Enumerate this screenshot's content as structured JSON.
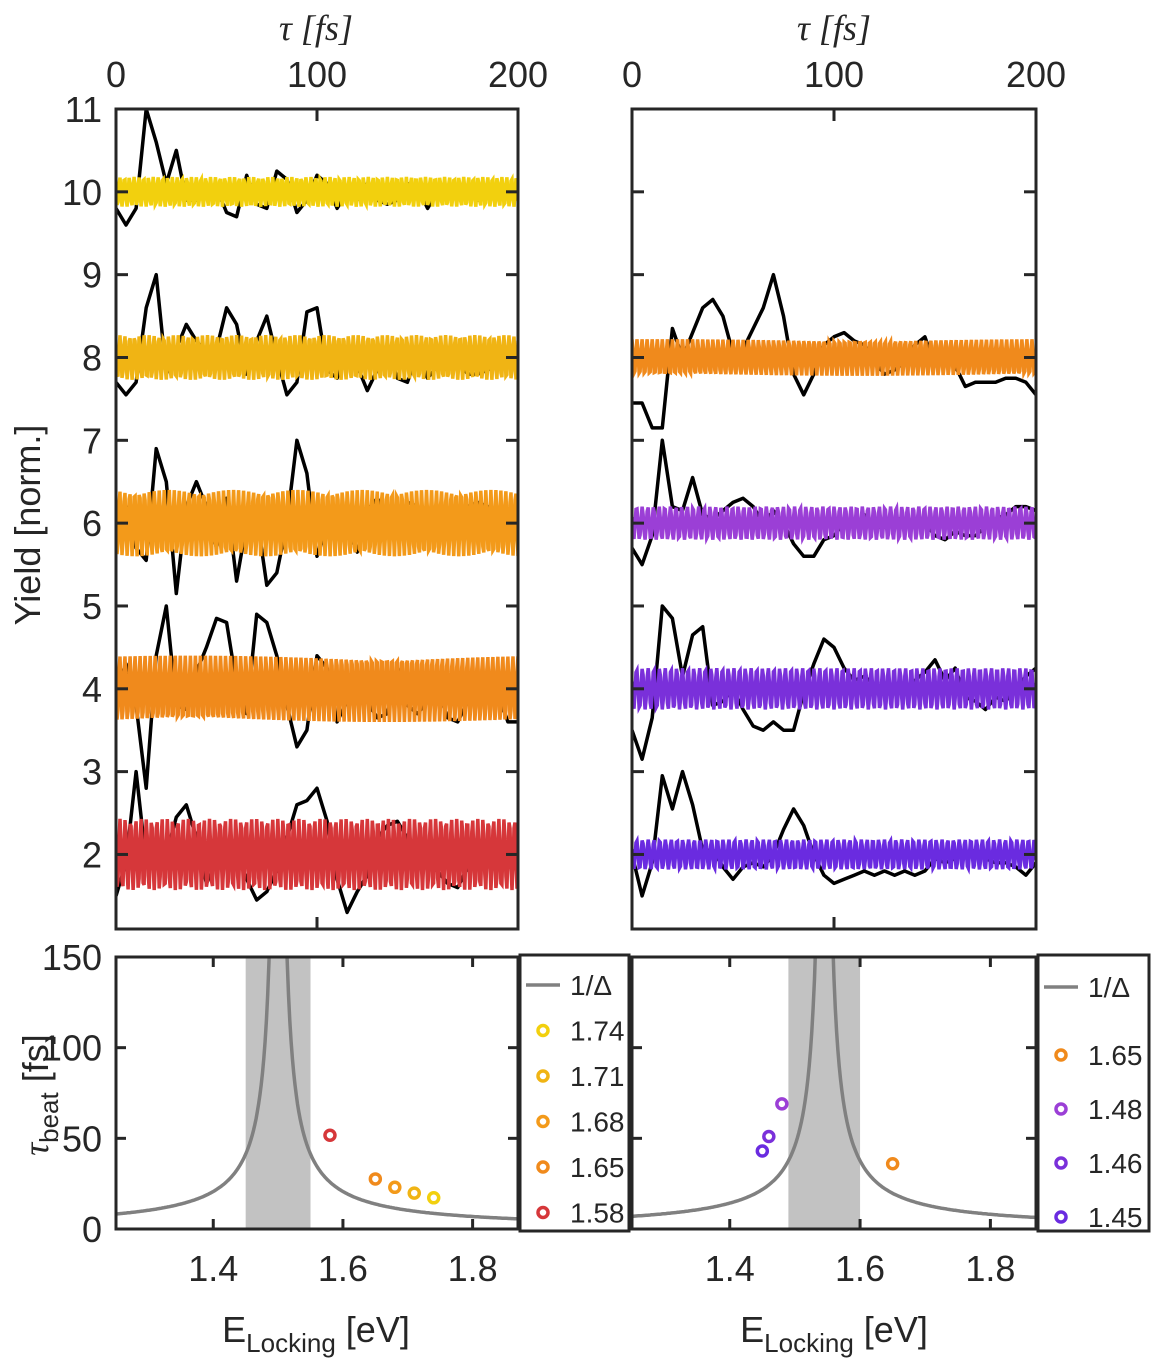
{
  "chart_data": [
    {
      "id": "top-left",
      "type": "line",
      "xlabel": "τ [fs]",
      "ylabel": "Yield [norm.]",
      "xlim": [
        0,
        200
      ],
      "ylim": [
        1.1,
        11
      ],
      "xticks": [
        0,
        100,
        200
      ],
      "yticks": [
        2,
        3,
        4,
        5,
        6,
        7,
        8,
        9,
        10,
        11
      ],
      "series": [
        {
          "name": "data-10",
          "color": "#000000",
          "x": [
            0,
            5,
            10,
            15,
            20,
            25,
            30,
            35,
            40,
            45,
            50,
            55,
            60,
            65,
            70,
            75,
            80,
            85,
            90,
            95,
            100,
            105,
            110,
            115,
            120,
            125,
            130,
            135,
            140,
            145,
            150,
            155,
            160,
            165,
            170,
            175,
            180,
            185,
            190,
            195,
            200
          ],
          "y": [
            9.8,
            9.6,
            9.8,
            11,
            10.6,
            10.1,
            10.5,
            9.9,
            9.9,
            10,
            10.05,
            9.75,
            9.7,
            10.2,
            9.85,
            9.8,
            10.25,
            10.15,
            9.75,
            9.9,
            10.2,
            10.1,
            9.8,
            10,
            9.9,
            10.1,
            9.9,
            9.85,
            9.9,
            10.1,
            10.05,
            9.8,
            10,
            10.05,
            10,
            9.95,
            9.9,
            10,
            10,
            9.95,
            10
          ]
        },
        {
          "name": "fit-1.74",
          "color": "#f2d00e",
          "freq": 1.74,
          "offset": 10,
          "amp": 0.18,
          "phase": 1.3
        },
        {
          "name": "data-8",
          "color": "#000000",
          "x": [
            0,
            5,
            10,
            15,
            20,
            25,
            30,
            35,
            40,
            45,
            50,
            55,
            60,
            65,
            70,
            75,
            80,
            85,
            90,
            95,
            100,
            105,
            110,
            115,
            120,
            125,
            130,
            135,
            140,
            145,
            150,
            155,
            160,
            165,
            170,
            175,
            180,
            185,
            190,
            195,
            200
          ],
          "y": [
            7.7,
            7.55,
            7.7,
            8.6,
            9,
            7.8,
            8.1,
            8.4,
            8.2,
            8.05,
            8.1,
            8.6,
            8.4,
            7.8,
            8.2,
            8.5,
            8,
            7.55,
            7.7,
            8.55,
            8.6,
            7.85,
            7.75,
            8.1,
            7.9,
            7.6,
            7.85,
            8.1,
            7.75,
            7.7,
            8.05,
            7.75,
            7.9,
            7.85,
            7.95,
            7.8,
            7.8,
            7.85,
            8,
            7.95,
            7.95
          ]
        },
        {
          "name": "fit-1.71",
          "color": "#f0b414",
          "freq": 1.71,
          "offset": 8,
          "amp": 0.27,
          "phase": 1.2
        },
        {
          "name": "data-6",
          "color": "#000000",
          "x": [
            0,
            5,
            10,
            15,
            20,
            25,
            30,
            35,
            40,
            45,
            50,
            55,
            60,
            65,
            70,
            75,
            80,
            85,
            90,
            95,
            100,
            105,
            110,
            115,
            120,
            125,
            130,
            135,
            140,
            145,
            150,
            155,
            160,
            165,
            170,
            175,
            180,
            185,
            190,
            195,
            200
          ],
          "y": [
            5.85,
            6.2,
            5.7,
            5.55,
            6.9,
            6.5,
            5.15,
            6.2,
            6.5,
            6.2,
            5.7,
            6.3,
            5.3,
            6,
            6.1,
            5.25,
            5.4,
            6,
            7,
            6.6,
            5.6,
            5.95,
            6.1,
            5.95,
            5.65,
            6.15,
            6.3,
            6.1,
            5.85,
            6.25,
            6.2,
            5.9,
            6.05,
            5.8,
            6.1,
            6.2,
            6.25,
            6.2,
            5.95,
            6,
            6.05
          ]
        },
        {
          "name": "fit-1.68",
          "color": "#f39a1a",
          "freq": 1.68,
          "offset": 6,
          "amp": 0.4,
          "phase": 1.5
        },
        {
          "name": "data-4",
          "color": "#000000",
          "x": [
            0,
            5,
            10,
            15,
            20,
            25,
            30,
            35,
            40,
            45,
            50,
            55,
            60,
            65,
            70,
            75,
            80,
            85,
            90,
            95,
            100,
            105,
            110,
            115,
            120,
            125,
            130,
            135,
            140,
            145,
            150,
            155,
            160,
            165,
            170,
            175,
            180,
            185,
            190,
            195,
            200
          ],
          "y": [
            4,
            4.3,
            3.8,
            2.8,
            4.4,
            5,
            3.8,
            3.75,
            4.2,
            4.5,
            4.85,
            4.8,
            4.05,
            3.7,
            4.9,
            4.8,
            4.4,
            3.8,
            3.3,
            3.5,
            4.4,
            4.25,
            3.6,
            3.85,
            4,
            3.85,
            3.65,
            3.7,
            4.25,
            3.8,
            3.7,
            3.85,
            4,
            3.65,
            3.6,
            3.85,
            4.1,
            3.85,
            3.95,
            3.6,
            3.6
          ]
        },
        {
          "name": "fit-1.65",
          "color": "#f08a1c",
          "freq": 1.65,
          "offset": 4,
          "amp": 0.4,
          "phase": 1.5
        },
        {
          "name": "data-2",
          "color": "#000000",
          "x": [
            0,
            5,
            10,
            15,
            20,
            25,
            30,
            35,
            40,
            45,
            50,
            55,
            60,
            65,
            70,
            75,
            80,
            85,
            90,
            95,
            100,
            105,
            110,
            115,
            120,
            125,
            130,
            135,
            140,
            145,
            150,
            155,
            160,
            165,
            170,
            175,
            180,
            185,
            190,
            195,
            200
          ],
          "y": [
            1.5,
            1.9,
            3,
            1.9,
            1.85,
            2,
            2.45,
            2.6,
            2.2,
            1.65,
            1.9,
            2.05,
            2,
            1.7,
            1.45,
            1.55,
            1.8,
            2.2,
            2.6,
            2.65,
            2.8,
            2.4,
            1.7,
            1.3,
            1.55,
            1.75,
            2.2,
            2.35,
            2.4,
            2.2,
            2.05,
            1.9,
            1.8,
            1.65,
            1.6,
            1.85,
            1.85,
            1.9,
            2,
            2.05,
            2.15
          ]
        },
        {
          "name": "fit-1.58",
          "color": "#d6373a",
          "freq": 1.58,
          "offset": 2,
          "amp": 0.43,
          "phase": 1.5
        }
      ]
    },
    {
      "id": "top-right",
      "type": "line",
      "xlabel": "τ [fs]",
      "xlim": [
        0,
        200
      ],
      "ylim": [
        1.1,
        11
      ],
      "xticks": [
        0,
        100,
        200
      ],
      "series": [
        {
          "name": "data-8",
          "color": "#000000",
          "x": [
            0,
            5,
            10,
            15,
            20,
            25,
            30,
            35,
            40,
            45,
            50,
            55,
            60,
            65,
            70,
            75,
            80,
            85,
            90,
            95,
            100,
            105,
            110,
            115,
            120,
            125,
            130,
            135,
            140,
            145,
            150,
            155,
            160,
            165,
            170,
            175,
            180,
            185,
            190,
            195,
            200
          ],
          "y": [
            7.45,
            7.45,
            7.15,
            7.15,
            8.35,
            8,
            8.3,
            8.6,
            8.7,
            8.5,
            8.05,
            8.1,
            8.35,
            8.6,
            9,
            8.5,
            7.8,
            7.55,
            7.8,
            8.15,
            8.25,
            8.3,
            8.2,
            8.15,
            7.95,
            7.8,
            7.85,
            7.95,
            8.15,
            8.25,
            7.9,
            8.1,
            7.9,
            7.65,
            7.7,
            7.7,
            7.7,
            7.75,
            7.75,
            7.7,
            7.55
          ]
        },
        {
          "name": "fit-1.65",
          "color": "#f08a1c",
          "freq": 1.65,
          "offset": 8,
          "amp": 0.22,
          "phase": 0.1
        },
        {
          "name": "data-6",
          "color": "#000000",
          "x": [
            0,
            5,
            10,
            15,
            20,
            25,
            30,
            35,
            40,
            45,
            50,
            55,
            60,
            65,
            70,
            75,
            80,
            85,
            90,
            95,
            100,
            105,
            110,
            115,
            120,
            125,
            130,
            135,
            140,
            145,
            150,
            155,
            160,
            165,
            170,
            175,
            180,
            185,
            190,
            195,
            200
          ],
          "y": [
            5.7,
            5.5,
            5.85,
            7,
            6.2,
            6.15,
            6.55,
            6.1,
            6.05,
            6.15,
            6.25,
            6.3,
            6.2,
            6,
            6.15,
            6,
            5.75,
            5.6,
            5.6,
            5.8,
            5.85,
            6,
            5.95,
            6.1,
            5.95,
            5.95,
            6.05,
            6.05,
            6,
            6,
            5.85,
            5.8,
            5.9,
            5.85,
            5.85,
            5.95,
            6.05,
            6.1,
            6.2,
            6.2,
            6.15
          ]
        },
        {
          "name": "fit-1.48",
          "color": "#9b3fd6",
          "freq": 1.48,
          "offset": 6,
          "amp": 0.2,
          "phase": 1.2
        },
        {
          "name": "data-4",
          "color": "#000000",
          "x": [
            0,
            5,
            10,
            15,
            20,
            25,
            30,
            35,
            40,
            45,
            50,
            55,
            60,
            65,
            70,
            75,
            80,
            85,
            90,
            95,
            100,
            105,
            110,
            115,
            120,
            125,
            130,
            135,
            140,
            145,
            150,
            155,
            160,
            165,
            170,
            175,
            180,
            185,
            190,
            195,
            200
          ],
          "y": [
            3.5,
            3.15,
            3.65,
            5,
            4.85,
            4.15,
            4.65,
            4.75,
            3.8,
            3.85,
            4,
            3.75,
            3.55,
            3.5,
            3.6,
            3.5,
            3.5,
            3.95,
            4.3,
            4.6,
            4.5,
            4.25,
            4.1,
            4.15,
            4.05,
            4,
            4.05,
            3.95,
            4.1,
            4.2,
            4.35,
            4.1,
            4.25,
            3.9,
            3.85,
            3.75,
            3.9,
            3.85,
            4,
            4.15,
            4.25
          ]
        },
        {
          "name": "fit-1.46",
          "color": "#7a30da",
          "freq": 1.46,
          "offset": 4,
          "amp": 0.25,
          "phase": 1.2
        },
        {
          "name": "data-2",
          "color": "#000000",
          "x": [
            0,
            5,
            10,
            15,
            20,
            25,
            30,
            35,
            40,
            45,
            50,
            55,
            60,
            65,
            70,
            75,
            80,
            85,
            90,
            95,
            100,
            105,
            110,
            115,
            120,
            125,
            130,
            135,
            140,
            145,
            150,
            155,
            160,
            165,
            170,
            175,
            180,
            185,
            190,
            195,
            200
          ],
          "y": [
            2,
            1.5,
            1.9,
            2.95,
            2.55,
            3,
            2.6,
            2.05,
            2.05,
            1.85,
            1.7,
            1.85,
            1.9,
            1.85,
            2,
            2.3,
            2.55,
            2.35,
            2,
            1.75,
            1.65,
            1.7,
            1.75,
            1.8,
            1.75,
            1.8,
            1.75,
            1.8,
            1.75,
            1.8,
            1.95,
            1.9,
            1.95,
            2,
            2.05,
            1.95,
            1.9,
            1.9,
            1.85,
            1.75,
            1.9
          ]
        },
        {
          "name": "fit-1.45",
          "color": "#6a2be0",
          "freq": 1.45,
          "offset": 2,
          "amp": 0.18,
          "phase": 1.2
        }
      ]
    },
    {
      "id": "bottom-left",
      "type": "line",
      "xlabel": "E",
      "xlabel_sub": "Locking",
      "xlabel_unit": " [eV]",
      "ylabel": "τ",
      "ylabel_sub": "beat",
      "ylabel_unit": " [fs]",
      "xlim": [
        1.25,
        1.87
      ],
      "ylim": [
        0,
        150
      ],
      "xticks": [
        1.4,
        1.6,
        1.8
      ],
      "yticks": [
        0,
        50,
        100,
        150
      ],
      "shaded_band": [
        1.45,
        1.55
      ],
      "curve": {
        "name": "1/Δ",
        "color": "#808080",
        "center": 1.5,
        "k": 4.136
      },
      "points": [
        {
          "label": "1.74",
          "x": 1.74,
          "y": 17.2,
          "color": "#f2d00e"
        },
        {
          "label": "1.71",
          "x": 1.71,
          "y": 19.8,
          "color": "#f0b414"
        },
        {
          "label": "1.68",
          "x": 1.68,
          "y": 23,
          "color": "#f39a1a"
        },
        {
          "label": "1.65",
          "x": 1.65,
          "y": 27.6,
          "color": "#f08a1c"
        },
        {
          "label": "1.58",
          "x": 1.58,
          "y": 51.7,
          "color": "#d6373a"
        }
      ],
      "legend": {
        "position": "right",
        "entries": [
          "1/Δ",
          "1.74",
          "1.71",
          "1.68",
          "1.65",
          "1.58"
        ]
      }
    },
    {
      "id": "bottom-right",
      "type": "line",
      "xlabel": "E",
      "xlabel_sub": "Locking",
      "xlabel_unit": " [eV]",
      "xlim": [
        1.25,
        1.87
      ],
      "ylim": [
        0,
        150
      ],
      "xticks": [
        1.4,
        1.6,
        1.8
      ],
      "shaded_band": [
        1.49,
        1.6
      ],
      "curve": {
        "name": "1/Δ",
        "color": "#808080",
        "center": 1.545,
        "k": 4.136
      },
      "points": [
        {
          "label": "1.65",
          "x": 1.65,
          "y": 36,
          "color": "#f08a1c"
        },
        {
          "label": "1.48",
          "x": 1.48,
          "y": 69,
          "color": "#9b3fd6"
        },
        {
          "label": "1.46",
          "x": 1.46,
          "y": 51,
          "color": "#7a30da"
        },
        {
          "label": "1.45",
          "x": 1.45,
          "y": 43,
          "color": "#6a2be0"
        }
      ],
      "legend": {
        "position": "right",
        "entries": [
          "1/Δ",
          "1.65",
          "1.48",
          "1.46",
          "1.45"
        ]
      }
    }
  ]
}
